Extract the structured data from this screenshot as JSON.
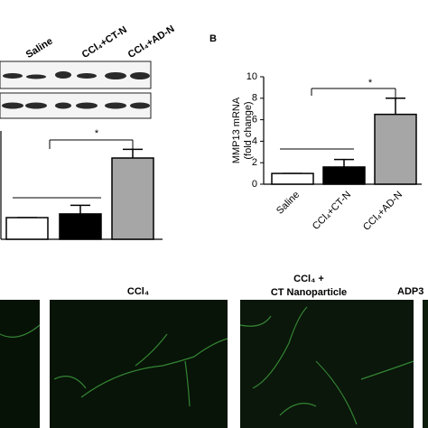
{
  "blot": {
    "lanes": [
      "Saline",
      "CCl₄+CT-N",
      "CCl₄+AD-N"
    ]
  },
  "chart_data": [
    {
      "type": "bar",
      "categories": [
        null,
        null,
        null
      ],
      "values": [
        1,
        1.17,
        3.75
      ],
      "errors": [
        0,
        0.4,
        0.4
      ],
      "colors": [
        "#ffffff",
        "#000000",
        "#a6a6a6"
      ],
      "ylim": [
        0,
        5
      ],
      "annotation": "*"
    },
    {
      "type": "bar",
      "panel_label": "B",
      "y_label": [
        "MMP13 mRNA",
        "(fold change)"
      ],
      "categories": [
        "Saline",
        "CCl₄+CT-N",
        "CCl₄+AD-N"
      ],
      "values": [
        1,
        1.6,
        6.5
      ],
      "errors": [
        0,
        0.7,
        1.5
      ],
      "colors": [
        "#ffffff",
        "#000000",
        "#a6a6a6"
      ],
      "ylim": [
        0,
        10
      ],
      "yticks": [
        0,
        2,
        4,
        6,
        8,
        10
      ],
      "annotation": "*"
    }
  ],
  "micrographs": {
    "labels": [
      "CCl₄",
      [
        "CCl₄ +",
        "CT Nanoparticle"
      ],
      "ADP3"
    ]
  }
}
